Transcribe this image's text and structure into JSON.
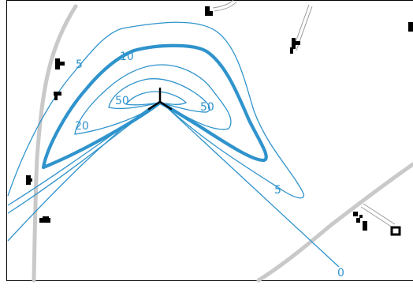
{
  "contour_labels": {
    "c5_left": "5",
    "c10": "10",
    "c50_left": "50",
    "c50_right": "50",
    "c20": "20",
    "c5_right": "5",
    "c0": "0"
  },
  "colors": {
    "contour": "#2f93cc",
    "road": "#c9c9c9",
    "building": "#000000",
    "source_marker": "#000000"
  },
  "icons": {
    "source": "wind-turbine-icon"
  }
}
